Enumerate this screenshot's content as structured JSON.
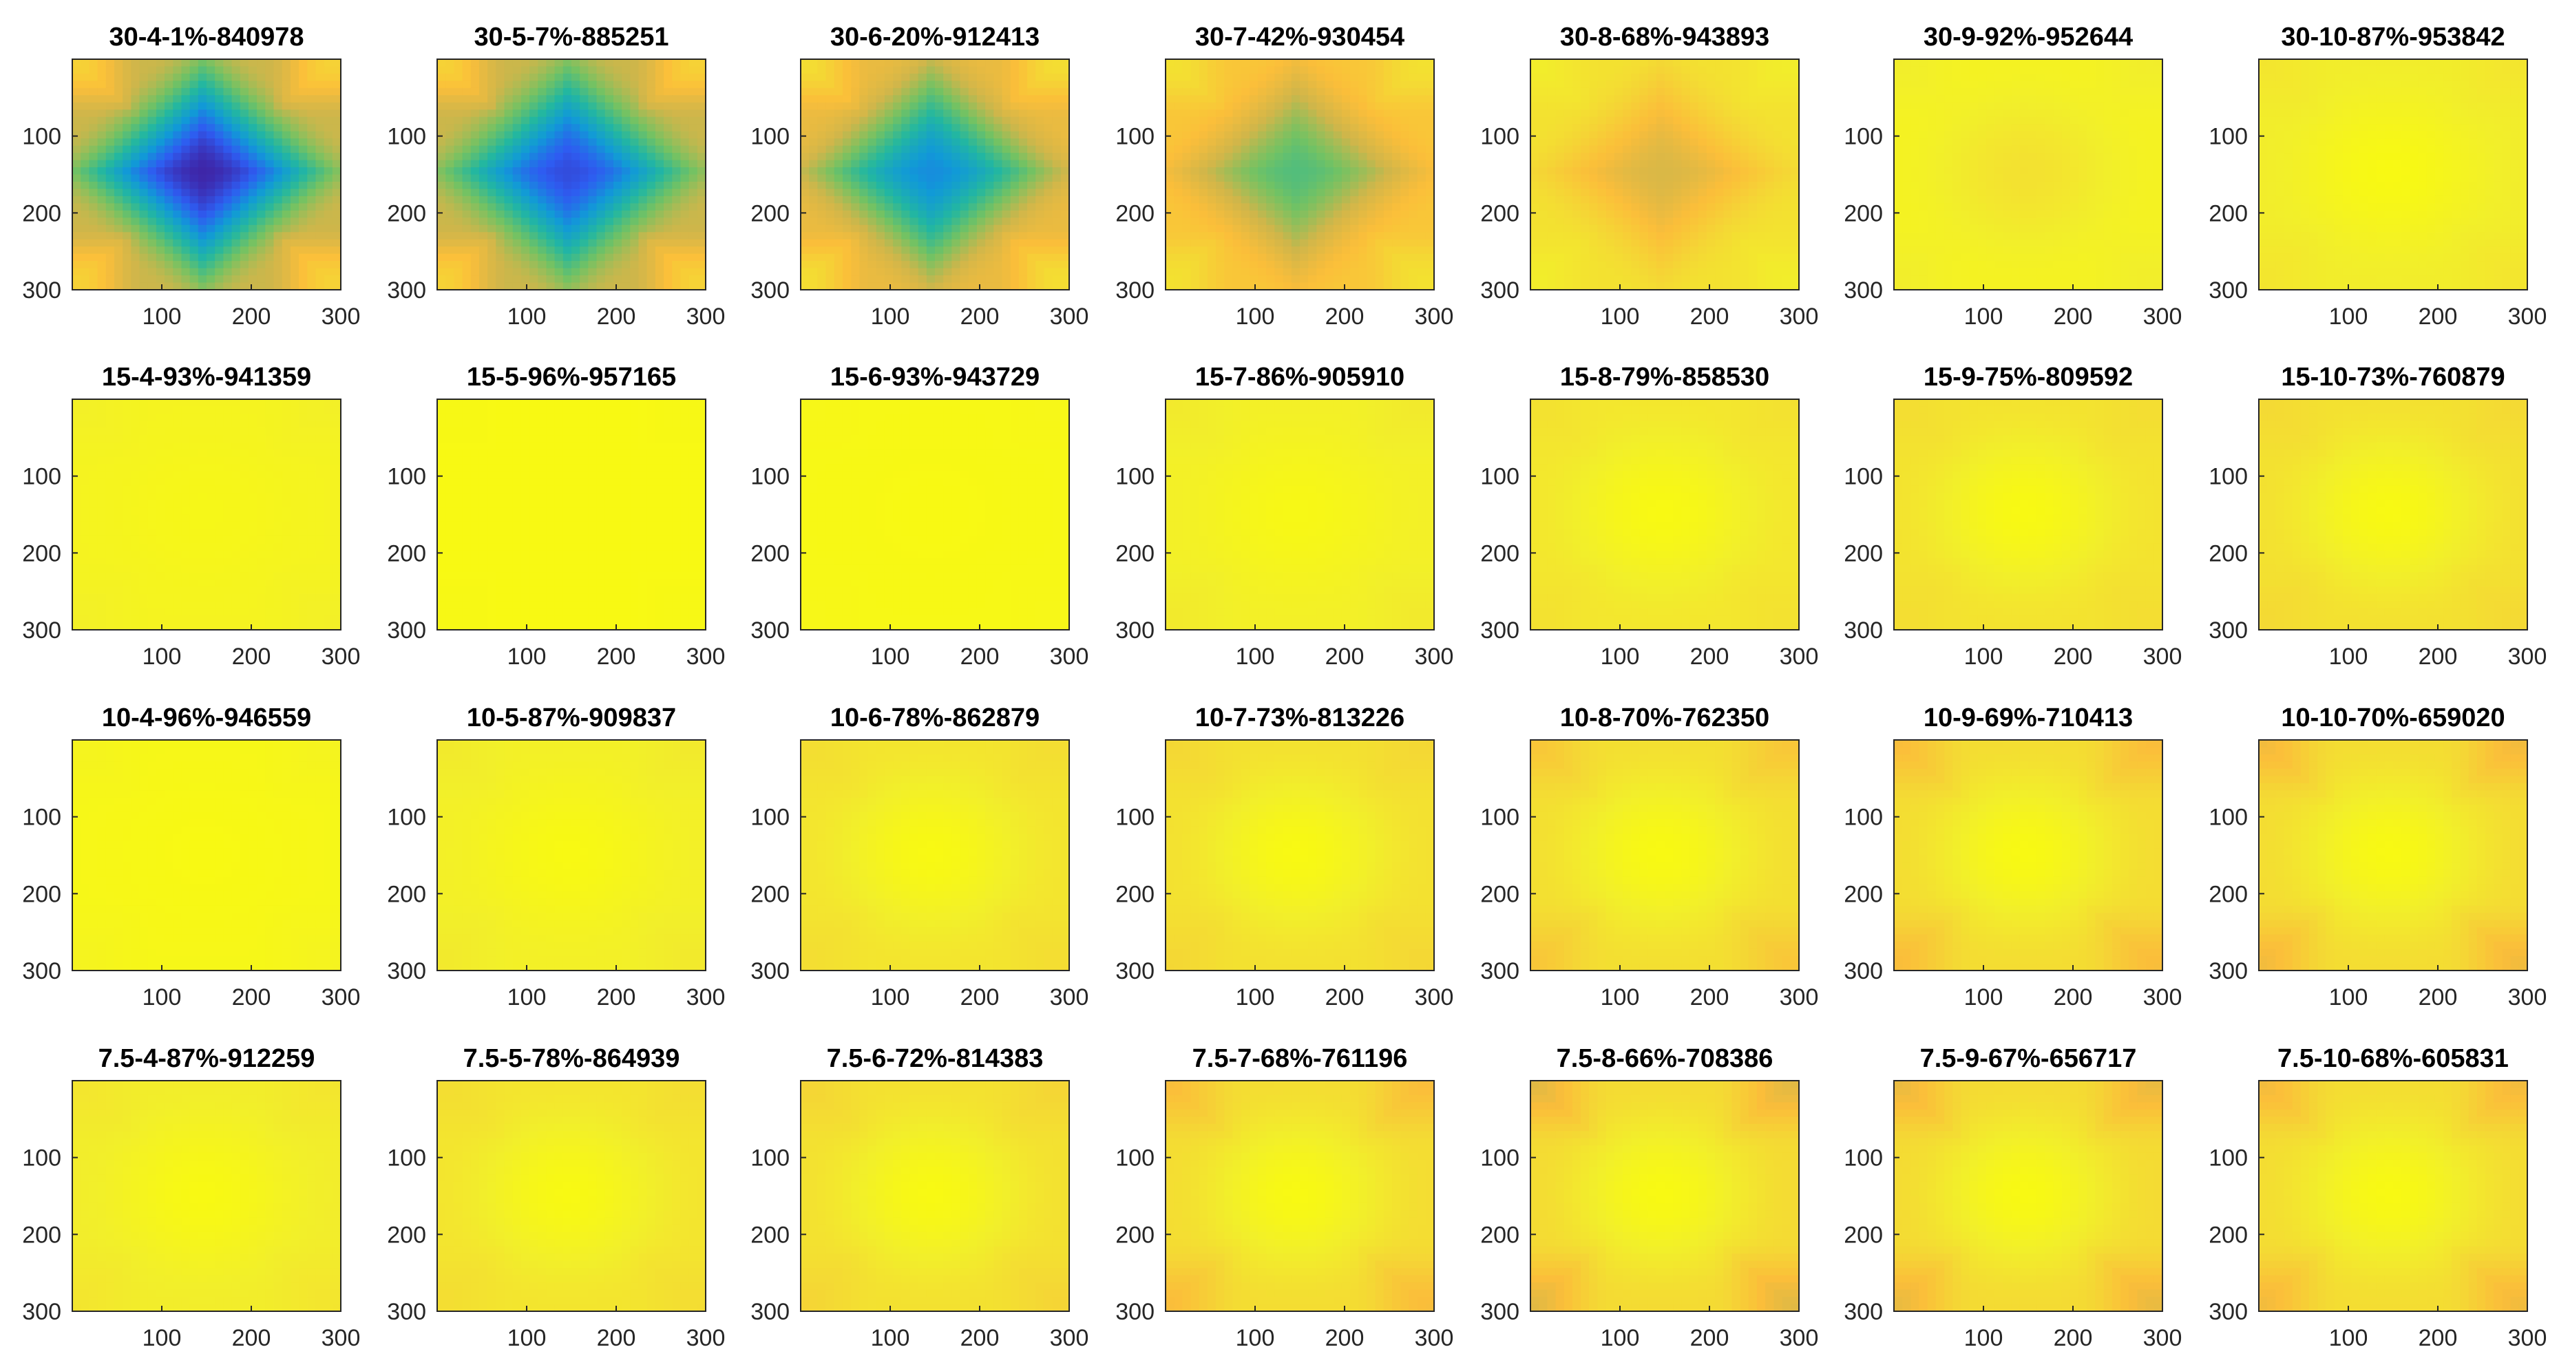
{
  "chart_data": {
    "type": "heatmap",
    "layout": "4 rows x 7 columns of small-multiple heatmaps",
    "x_ticks": [
      "100",
      "200",
      "300"
    ],
    "y_ticks": [
      "100",
      "200",
      "300"
    ],
    "xlim": [
      0,
      300
    ],
    "ylim": [
      0,
      300
    ],
    "y_axis_direction": "reversed (0 at top, 300 at bottom)",
    "colormap": "parula",
    "colormap_stops": [
      "#3e26a8",
      "#2e5cf1",
      "#119ad7",
      "#23b7a0",
      "#73c263",
      "#d0b64a",
      "#fbbe3a",
      "#f4d934",
      "#f2ef2a",
      "#f9fb0e"
    ],
    "panels": [
      {
        "title": "30-4-1%-840978",
        "center_level": 0.0,
        "edge_level": 0.55,
        "corner_level": 0.75,
        "pattern": "diamond"
      },
      {
        "title": "30-5-7%-885251",
        "center_level": 0.08,
        "edge_level": 0.55,
        "corner_level": 0.75,
        "pattern": "diamond"
      },
      {
        "title": "30-6-20%-912413",
        "center_level": 0.2,
        "edge_level": 0.62,
        "corner_level": 0.8,
        "pattern": "diamond"
      },
      {
        "title": "30-7-42%-930454",
        "center_level": 0.4,
        "edge_level": 0.7,
        "corner_level": 0.82,
        "pattern": "diamond"
      },
      {
        "title": "30-8-68%-943893",
        "center_level": 0.58,
        "edge_level": 0.82,
        "corner_level": 0.88,
        "pattern": "diamond"
      },
      {
        "title": "30-9-92%-952644",
        "center_level": 0.82,
        "edge_level": 0.92,
        "corner_level": 0.88,
        "pattern": "radial"
      },
      {
        "title": "30-10-87%-953842",
        "center_level": 0.98,
        "edge_level": 0.88,
        "corner_level": 0.84,
        "pattern": "radial"
      },
      {
        "title": "15-4-93%-941359",
        "center_level": 0.96,
        "edge_level": 0.93,
        "corner_level": 0.9,
        "pattern": "radial"
      },
      {
        "title": "15-5-96%-957165",
        "center_level": 0.98,
        "edge_level": 0.98,
        "corner_level": 0.97,
        "pattern": "radial"
      },
      {
        "title": "15-6-93%-943729",
        "center_level": 0.98,
        "edge_level": 0.97,
        "corner_level": 0.96,
        "pattern": "radial"
      },
      {
        "title": "15-7-86%-905910",
        "center_level": 0.97,
        "edge_level": 0.9,
        "corner_level": 0.86,
        "pattern": "radial"
      },
      {
        "title": "15-8-79%-858530",
        "center_level": 0.98,
        "edge_level": 0.85,
        "corner_level": 0.82,
        "pattern": "radial"
      },
      {
        "title": "15-9-75%-809592",
        "center_level": 0.98,
        "edge_level": 0.83,
        "corner_level": 0.8,
        "pattern": "radial"
      },
      {
        "title": "15-10-73%-760879",
        "center_level": 0.98,
        "edge_level": 0.82,
        "corner_level": 0.78,
        "pattern": "radial"
      },
      {
        "title": "10-4-96%-946559",
        "center_level": 0.98,
        "edge_level": 0.96,
        "corner_level": 0.93,
        "pattern": "radial"
      },
      {
        "title": "10-5-87%-909837",
        "center_level": 0.98,
        "edge_level": 0.9,
        "corner_level": 0.86,
        "pattern": "radial"
      },
      {
        "title": "10-6-78%-862879",
        "center_level": 0.98,
        "edge_level": 0.84,
        "corner_level": 0.8,
        "pattern": "radial"
      },
      {
        "title": "10-7-73%-813226",
        "center_level": 0.98,
        "edge_level": 0.82,
        "corner_level": 0.77,
        "pattern": "radial"
      },
      {
        "title": "10-8-70%-762350",
        "center_level": 0.98,
        "edge_level": 0.81,
        "corner_level": 0.7,
        "pattern": "radial"
      },
      {
        "title": "10-9-69%-710413",
        "center_level": 0.98,
        "edge_level": 0.8,
        "corner_level": 0.66,
        "pattern": "radial"
      },
      {
        "title": "10-10-70%-659020",
        "center_level": 0.98,
        "edge_level": 0.8,
        "corner_level": 0.64,
        "pattern": "radial"
      },
      {
        "title": "7.5-4-87%-912259",
        "center_level": 0.98,
        "edge_level": 0.88,
        "corner_level": 0.84,
        "pattern": "radial"
      },
      {
        "title": "7.5-5-78%-864939",
        "center_level": 0.98,
        "edge_level": 0.84,
        "corner_level": 0.8,
        "pattern": "radial"
      },
      {
        "title": "7.5-6-72%-814383",
        "center_level": 0.98,
        "edge_level": 0.82,
        "corner_level": 0.76,
        "pattern": "radial"
      },
      {
        "title": "7.5-7-68%-761196",
        "center_level": 0.98,
        "edge_level": 0.8,
        "corner_level": 0.66,
        "pattern": "radial"
      },
      {
        "title": "7.5-8-66%-708386",
        "center_level": 0.98,
        "edge_level": 0.79,
        "corner_level": 0.6,
        "pattern": "radial"
      },
      {
        "title": "7.5-9-67%-656717",
        "center_level": 0.98,
        "edge_level": 0.79,
        "corner_level": 0.62,
        "pattern": "radial"
      },
      {
        "title": "7.5-10-68%-605831",
        "center_level": 0.98,
        "edge_level": 0.8,
        "corner_level": 0.64,
        "pattern": "radial"
      }
    ]
  }
}
